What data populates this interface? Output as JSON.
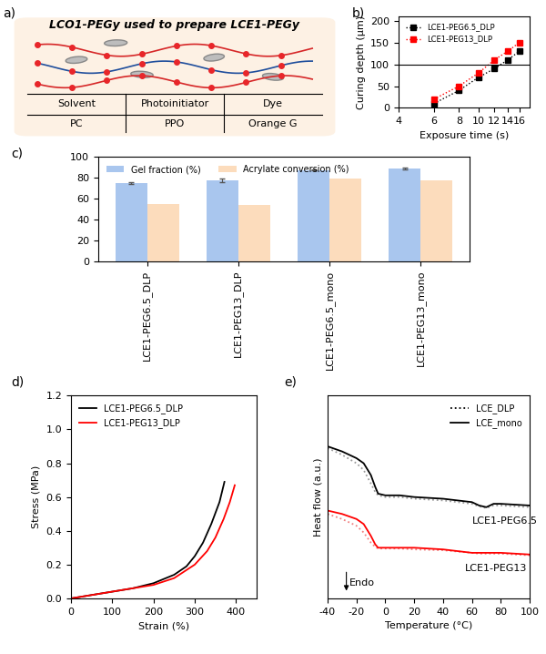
{
  "diagram": {
    "panel": "a)",
    "title": "LCO1-PEGy used to prepare LCE1-PEGy",
    "table": {
      "header": [
        "Solvent",
        "Photoinitiator",
        "Dye"
      ],
      "rows": [
        [
          "PC",
          "PPO",
          "Orange G"
        ]
      ]
    }
  },
  "chart_data": [
    {
      "panel": "b)",
      "type": "scatter",
      "log": "x",
      "xlabel": "Exposure time (s)",
      "ylabel": "Curing depth (μm)",
      "x": [
        6,
        8,
        10,
        12,
        14,
        16
      ],
      "xlim": [
        4,
        18
      ],
      "xticks": [
        4,
        6,
        8,
        10,
        12,
        14,
        16
      ],
      "ylim": [
        0,
        210
      ],
      "yticks": [
        0,
        50,
        100,
        150,
        200
      ],
      "hline": 100,
      "legend": "upper left",
      "series": [
        {
          "name": "LCE1-PEG6.5_DLP",
          "color": "#000000",
          "marker": "square",
          "line_style": "dotted",
          "values": [
            10,
            40,
            70,
            90,
            110,
            130
          ]
        },
        {
          "name": "LCE1-PEG13_DLP",
          "color": "#ff0000",
          "marker": "square",
          "line_style": "dotted",
          "values": [
            20,
            50,
            80,
            110,
            130,
            150
          ]
        }
      ]
    },
    {
      "panel": "c)",
      "type": "bar",
      "categories": [
        "LCE1-PEG6.5_DLP",
        "LCE1-PEG13_DLP",
        "LCE1-PEG6.5_mono",
        "LCE1-PEG13_mono"
      ],
      "ylim": [
        0,
        100
      ],
      "yticks": [
        0,
        20,
        40,
        60,
        80,
        100
      ],
      "legend": "upper left",
      "series": [
        {
          "name": "Gel fraction (%)",
          "color": "#a9c6ee",
          "values": [
            75,
            77.5,
            87.5,
            89
          ],
          "errors": [
            0.5,
            2,
            0.7,
            0.5
          ]
        },
        {
          "name": "Acrylate conversion (%)",
          "color": "#fcdcbc",
          "values": [
            55,
            54.5,
            79,
            78
          ]
        }
      ]
    },
    {
      "panel": "d)",
      "type": "line",
      "xlabel": "Strain (%)",
      "ylabel": "Stress (MPa)",
      "xlim": [
        0,
        450
      ],
      "xticks": [
        0,
        100,
        200,
        300,
        400
      ],
      "ylim": [
        0,
        1.2
      ],
      "yticks": [
        {
          "value": 0,
          "label": "0.0"
        },
        {
          "value": 0.2,
          "label": "0.2"
        },
        {
          "value": 0.4,
          "label": "0.4"
        },
        {
          "value": 0.6,
          "label": "0.6"
        },
        {
          "value": 0.8,
          "label": "0.8"
        },
        {
          "value": 1.0,
          "label": "1.0"
        },
        {
          "value": 1.2,
          "label": "1.2"
        }
      ],
      "legend": "upper left",
      "series": [
        {
          "name": "LCE1-PEG6.5_DLP",
          "color": "#000000",
          "x": [
            0,
            50,
            100,
            150,
            200,
            250,
            280,
            300,
            320,
            340,
            360,
            372
          ],
          "values": [
            0,
            0.02,
            0.04,
            0.06,
            0.09,
            0.14,
            0.19,
            0.25,
            0.33,
            0.44,
            0.57,
            0.69
          ]
        },
        {
          "name": "LCE1-PEG13_DLP",
          "color": "#ff0000",
          "x": [
            0,
            50,
            100,
            150,
            200,
            250,
            300,
            330,
            350,
            370,
            385,
            397
          ],
          "values": [
            0,
            0.02,
            0.04,
            0.06,
            0.08,
            0.12,
            0.2,
            0.28,
            0.36,
            0.47,
            0.57,
            0.67
          ]
        }
      ]
    },
    {
      "panel": "e)",
      "type": "line",
      "xlabel": "Temperature (°C)",
      "ylabel": "Heat flow (a.u.)",
      "tick_labels": "x",
      "xlim": [
        -40,
        100
      ],
      "xticks": [
        -40,
        -20,
        0,
        20,
        40,
        60,
        80,
        100
      ],
      "ylim": [
        0,
        12
      ],
      "legend": "upper right",
      "x": [
        -40,
        -30,
        -20,
        -15,
        -10,
        -7,
        -5,
        0,
        10,
        20,
        40,
        60,
        65,
        70,
        75,
        80,
        100
      ],
      "annotation": {
        "text": "Endo",
        "x": -27
      },
      "groups": [
        {
          "label": "LCE1-PEG6.5",
          "label_x": 60,
          "series": [
            {
              "name": "LCE_DLP",
              "color": "#9a9a9a",
              "line_style": "dotted",
              "values": [
                8.9,
                8.5,
                8.0,
                7.6,
                6.8,
                6.3,
                6.1,
                6.0,
                6.0,
                5.9,
                5.8,
                5.6,
                5.45,
                5.35,
                5.5,
                5.5,
                5.4
              ]
            },
            {
              "name": "LCE_mono",
              "color": "#000000",
              "line_style": "solid",
              "values": [
                9.0,
                8.7,
                8.3,
                8.0,
                7.3,
                6.6,
                6.2,
                6.1,
                6.1,
                6.0,
                5.9,
                5.7,
                5.5,
                5.4,
                5.6,
                5.6,
                5.5
              ]
            }
          ]
        },
        {
          "label": "LCE1-PEG13",
          "label_x": 55,
          "series": [
            {
              "name": "LCE_DLP",
              "color": "#f08080",
              "line_style": "dotted",
              "values": [
                5.0,
                4.7,
                4.3,
                3.9,
                3.3,
                3.05,
                2.95,
                2.95,
                2.95,
                2.9,
                2.85,
                2.7,
                2.65,
                2.65,
                2.65,
                2.65,
                2.55
              ]
            },
            {
              "name": "LCE_mono",
              "color": "#ff0000",
              "line_style": "solid",
              "values": [
                5.2,
                5.0,
                4.7,
                4.4,
                3.7,
                3.2,
                3.0,
                3.0,
                3.0,
                3.0,
                2.9,
                2.7,
                2.7,
                2.7,
                2.7,
                2.7,
                2.6
              ]
            }
          ]
        }
      ]
    }
  ]
}
